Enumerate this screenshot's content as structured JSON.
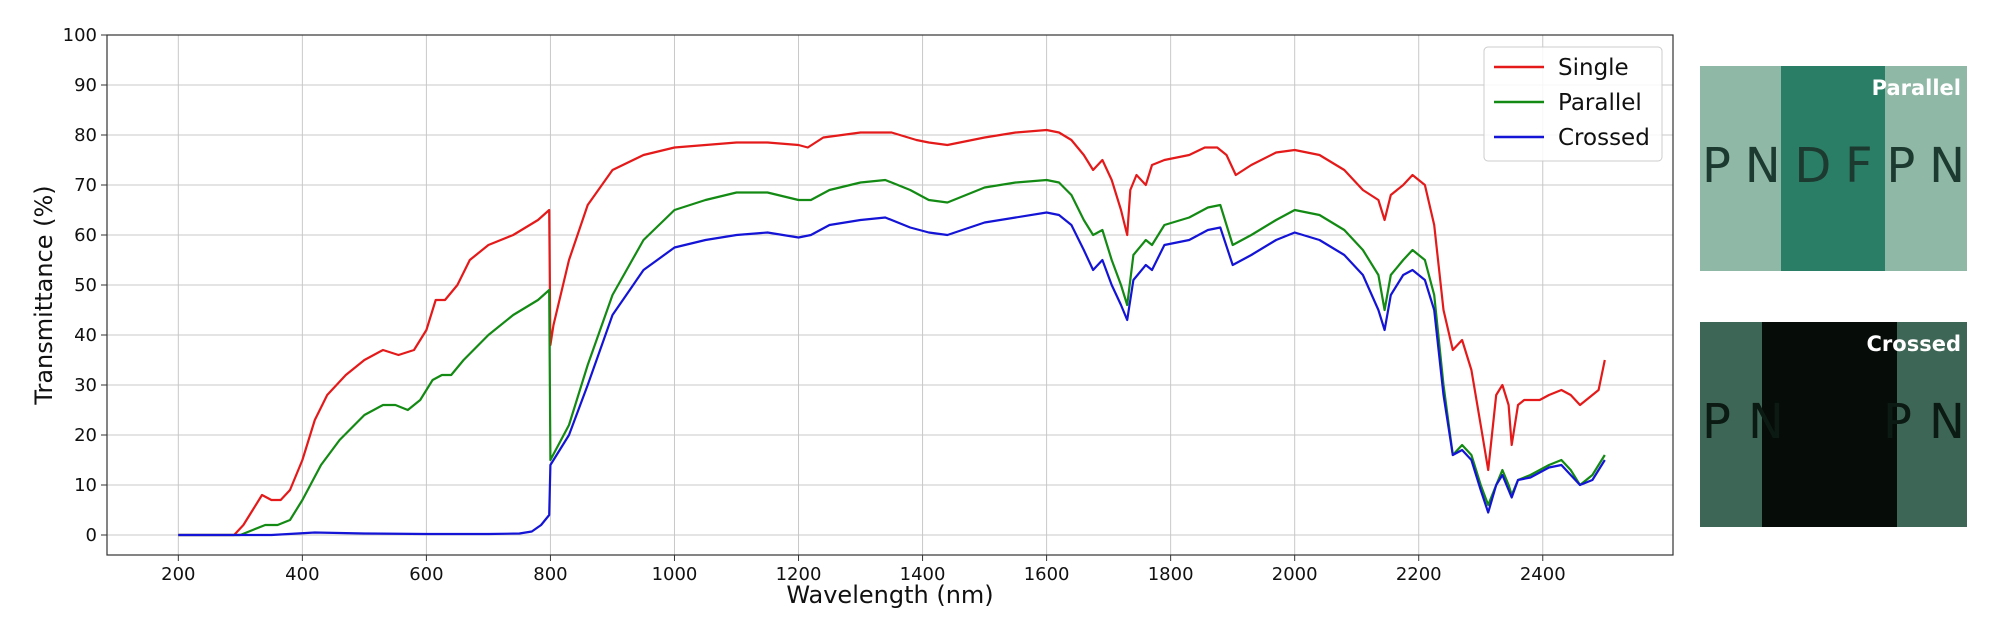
{
  "chart_data": {
    "type": "line",
    "xlabel": "Wavelength (nm)",
    "ylabel": "Transmittance (%)",
    "xlim": [
      85,
      2610
    ],
    "ylim": [
      -4,
      100
    ],
    "xticks": [
      200,
      400,
      600,
      800,
      1000,
      1200,
      1400,
      1600,
      1800,
      2000,
      2200,
      2400
    ],
    "yticks": [
      0,
      10,
      20,
      30,
      40,
      50,
      60,
      70,
      80,
      90,
      100
    ],
    "grid": true,
    "legend_position": "top-right",
    "series": [
      {
        "name": "Single",
        "color": "#e41a1a",
        "x": [
          200,
          290,
          305,
          320,
          335,
          350,
          365,
          380,
          400,
          420,
          440,
          470,
          500,
          530,
          555,
          580,
          600,
          615,
          630,
          650,
          670,
          700,
          740,
          780,
          798,
          800,
          805,
          830,
          860,
          900,
          950,
          1000,
          1050,
          1100,
          1150,
          1200,
          1215,
          1240,
          1300,
          1350,
          1390,
          1410,
          1440,
          1500,
          1550,
          1600,
          1620,
          1640,
          1660,
          1675,
          1690,
          1705,
          1720,
          1730,
          1735,
          1745,
          1760,
          1770,
          1790,
          1830,
          1855,
          1875,
          1890,
          1905,
          1930,
          1970,
          2000,
          2040,
          2080,
          2110,
          2135,
          2145,
          2155,
          2175,
          2190,
          2210,
          2225,
          2240,
          2255,
          2270,
          2285,
          2300,
          2312,
          2325,
          2335,
          2345,
          2350,
          2360,
          2370,
          2380,
          2395,
          2410,
          2430,
          2445,
          2460,
          2480,
          2490,
          2500
        ],
        "y": [
          0,
          0,
          2,
          5,
          8,
          7,
          7,
          9,
          15,
          23,
          28,
          32,
          35,
          37,
          36,
          37,
          41,
          47,
          47,
          50,
          55,
          58,
          60,
          63,
          65,
          38,
          42,
          55,
          66,
          73,
          76,
          77.5,
          78,
          78.5,
          78.5,
          78,
          77.5,
          79.5,
          80.5,
          80.5,
          79,
          78.5,
          78,
          79.5,
          80.5,
          81,
          80.5,
          79,
          76,
          73,
          75,
          71,
          65,
          60,
          69,
          72,
          70,
          74,
          75,
          76,
          77.5,
          77.5,
          76,
          72,
          74,
          76.5,
          77,
          76,
          73,
          69,
          67,
          63,
          68,
          70,
          72,
          70,
          62,
          45,
          37,
          39,
          33,
          22,
          13,
          28,
          30,
          26,
          18,
          26,
          27,
          27,
          27,
          28,
          29,
          28,
          26,
          28,
          29,
          35
        ]
      },
      {
        "name": "Parallel",
        "color": "#138a13",
        "x": [
          200,
          300,
          320,
          340,
          360,
          380,
          400,
          430,
          460,
          500,
          530,
          550,
          570,
          590,
          610,
          625,
          640,
          660,
          700,
          740,
          780,
          798,
          800,
          830,
          860,
          900,
          950,
          1000,
          1050,
          1100,
          1150,
          1200,
          1220,
          1250,
          1300,
          1340,
          1380,
          1410,
          1440,
          1500,
          1550,
          1600,
          1620,
          1640,
          1660,
          1675,
          1690,
          1705,
          1720,
          1730,
          1740,
          1760,
          1770,
          1790,
          1830,
          1860,
          1880,
          1900,
          1930,
          1970,
          2000,
          2040,
          2080,
          2110,
          2135,
          2145,
          2155,
          2175,
          2190,
          2210,
          2225,
          2240,
          2255,
          2270,
          2285,
          2300,
          2312,
          2325,
          2335,
          2345,
          2350,
          2360,
          2380,
          2395,
          2410,
          2430,
          2445,
          2460,
          2480,
          2500
        ],
        "y": [
          0,
          0,
          1,
          2,
          2,
          3,
          7,
          14,
          19,
          24,
          26,
          26,
          25,
          27,
          31,
          32,
          32,
          35,
          40,
          44,
          47,
          49,
          15,
          22,
          34,
          48,
          59,
          65,
          67,
          68.5,
          68.5,
          67,
          67,
          69,
          70.5,
          71,
          69,
          67,
          66.5,
          69.5,
          70.5,
          71,
          70.5,
          68,
          63,
          60,
          61,
          55,
          50,
          46,
          56,
          59,
          58,
          62,
          63.5,
          65.5,
          66,
          58,
          60,
          63,
          65,
          64,
          61,
          57,
          52,
          45,
          52,
          55,
          57,
          55,
          48,
          30,
          16,
          18,
          16,
          10,
          6,
          10,
          13,
          10,
          8,
          11,
          12,
          13,
          14,
          15,
          13,
          10,
          12,
          16
        ]
      },
      {
        "name": "Crossed",
        "color": "#1414d6",
        "x": [
          200,
          350,
          420,
          500,
          600,
          700,
          750,
          770,
          785,
          798,
          800,
          830,
          860,
          900,
          950,
          1000,
          1050,
          1100,
          1150,
          1200,
          1220,
          1250,
          1300,
          1340,
          1380,
          1410,
          1440,
          1500,
          1550,
          1600,
          1620,
          1640,
          1660,
          1675,
          1690,
          1705,
          1720,
          1730,
          1740,
          1760,
          1770,
          1790,
          1830,
          1860,
          1880,
          1900,
          1930,
          1970,
          2000,
          2040,
          2080,
          2110,
          2135,
          2145,
          2155,
          2175,
          2190,
          2210,
          2225,
          2240,
          2255,
          2270,
          2285,
          2300,
          2312,
          2325,
          2335,
          2345,
          2350,
          2360,
          2380,
          2395,
          2410,
          2430,
          2445,
          2460,
          2480,
          2500
        ],
        "y": [
          0,
          0,
          0.5,
          0.3,
          0.2,
          0.2,
          0.3,
          0.7,
          2,
          4,
          14,
          20,
          30,
          44,
          53,
          57.5,
          59,
          60,
          60.5,
          59.5,
          60,
          62,
          63,
          63.5,
          61.5,
          60.5,
          60,
          62.5,
          63.5,
          64.5,
          64,
          62,
          57,
          53,
          55,
          50,
          46,
          43,
          51,
          54,
          53,
          58,
          59,
          61,
          61.5,
          54,
          56,
          59,
          60.5,
          59,
          56,
          52,
          45,
          41,
          48,
          52,
          53,
          51,
          45,
          28,
          16,
          17,
          15,
          9,
          4.5,
          10,
          12,
          9,
          7.5,
          11,
          11.5,
          12.5,
          13.5,
          14,
          12,
          10,
          11,
          15
        ]
      }
    ]
  },
  "photos": [
    {
      "label": "Parallel",
      "letters": [
        "P",
        "N",
        "D",
        "F",
        "P",
        "N"
      ],
      "base_color": "#8fb8a6",
      "band_color": "#2b7e66",
      "letter_color": "#1d3a30"
    },
    {
      "label": "Crossed",
      "letters": [
        "P",
        "N",
        "",
        "",
        "P",
        "N"
      ],
      "base_color": "#3e6656",
      "band_color": "#060c07",
      "letter_color": "#0c1a14"
    }
  ]
}
